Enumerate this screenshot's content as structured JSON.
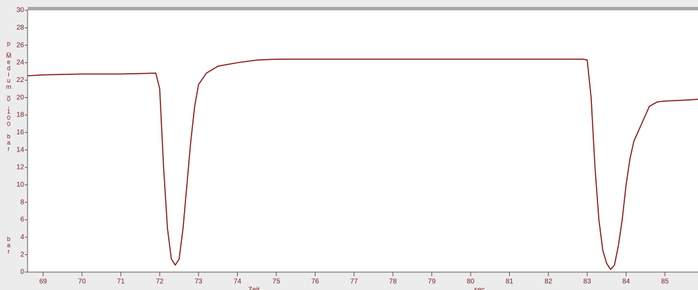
{
  "chart_data": {
    "type": "line",
    "y_label": "p_Medium_0,100 bar",
    "y_unit": "bar",
    "x_label": "Zeit",
    "x_unit": "sec",
    "x": [
      68.6,
      69,
      70,
      71,
      71.9,
      72.0,
      72.1,
      72.2,
      72.3,
      72.4,
      72.5,
      72.6,
      72.7,
      72.8,
      72.9,
      73.0,
      73.2,
      73.5,
      74.0,
      74.5,
      75,
      76,
      77,
      78,
      79,
      80,
      81,
      82,
      82.9,
      83.0,
      83.1,
      83.2,
      83.3,
      83.4,
      83.5,
      83.6,
      83.7,
      83.8,
      83.9,
      84.0,
      84.1,
      84.2,
      84.4,
      84.6,
      84.8,
      85.0,
      85.5,
      85.85
    ],
    "series": [
      {
        "name": "p_Medium",
        "color": "#8b1a1a",
        "values": [
          22.5,
          22.6,
          22.7,
          22.7,
          22.8,
          21,
          12,
          5,
          1.5,
          0.8,
          1.5,
          5,
          10,
          15,
          19,
          21.5,
          22.8,
          23.6,
          24.0,
          24.3,
          24.4,
          24.4,
          24.4,
          24.4,
          24.4,
          24.4,
          24.4,
          24.4,
          24.4,
          24.3,
          20,
          12,
          6,
          2.5,
          1,
          0.3,
          0.8,
          3,
          6,
          10,
          13,
          15,
          17,
          19,
          19.5,
          19.6,
          19.7,
          19.8
        ]
      }
    ],
    "xlim": [
      68.6,
      85.85
    ],
    "ylim": [
      0,
      30
    ],
    "xticks": [
      69,
      70,
      71,
      72,
      73,
      74,
      75,
      76,
      77,
      78,
      79,
      80,
      81,
      82,
      83,
      84,
      85
    ],
    "yticks": [
      0,
      2,
      4,
      6,
      8,
      10,
      12,
      14,
      16,
      18,
      20,
      22,
      24,
      26,
      28,
      30
    ]
  }
}
